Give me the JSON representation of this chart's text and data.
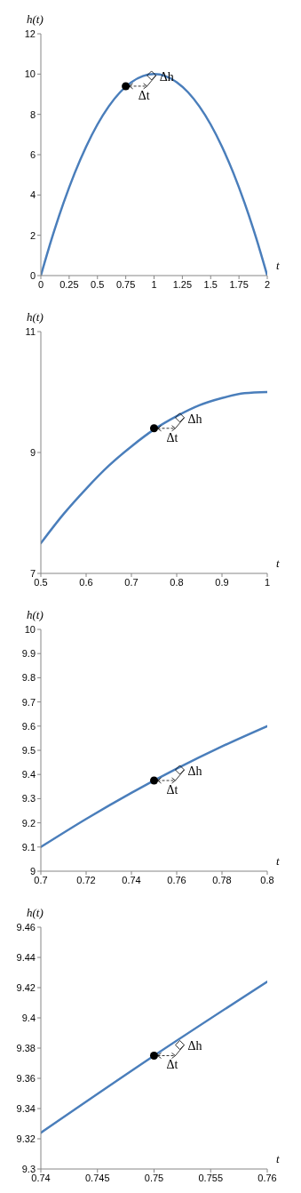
{
  "chart_data": [
    {
      "type": "line",
      "xlabel": "t",
      "ylabel": "h(t)",
      "xlim": [
        0,
        2
      ],
      "xticks": [
        0,
        0.25,
        0.5,
        0.75,
        1,
        1.25,
        1.5,
        1.75,
        2
      ],
      "ylim": [
        0,
        12
      ],
      "yticks": [
        0,
        2,
        4,
        6,
        8,
        10,
        12
      ],
      "grid": false,
      "series": [
        {
          "color": "#4a7ebb",
          "x": [
            0,
            0.1,
            0.2,
            0.3,
            0.4,
            0.5,
            0.6,
            0.7,
            0.8,
            0.9,
            1,
            1.1,
            1.2,
            1.3,
            1.4,
            1.5,
            1.6,
            1.7,
            1.8,
            1.9,
            2
          ],
          "values": [
            0,
            1.9,
            3.6,
            5.1,
            6.4,
            7.5,
            8.4,
            9.1,
            9.6,
            9.9,
            10,
            9.9,
            9.6,
            9.1,
            8.4,
            7.5,
            6.4,
            5.1,
            3.6,
            1.9,
            0
          ]
        },
        {
          "type": "scatter",
          "color": "#000000",
          "x": [
            0.75
          ],
          "values": [
            9.4
          ]
        }
      ],
      "annotations": [
        "Δt",
        "Δh"
      ]
    },
    {
      "type": "line",
      "xlabel": "t",
      "ylabel": "h(t)",
      "xlim": [
        0.5,
        1
      ],
      "xticks": [
        0.5,
        0.6,
        0.7,
        0.8,
        0.9,
        1
      ],
      "ylim": [
        7,
        11
      ],
      "yticks": [
        7,
        9,
        11
      ],
      "grid": false,
      "series": [
        {
          "color": "#4a7ebb",
          "x": [
            0.5,
            0.55,
            0.6,
            0.65,
            0.7,
            0.75,
            0.8,
            0.85,
            0.9,
            0.95,
            1
          ],
          "values": [
            7.5,
            7.98,
            8.4,
            8.78,
            9.1,
            9.38,
            9.6,
            9.78,
            9.9,
            9.98,
            10
          ]
        },
        {
          "type": "scatter",
          "color": "#000000",
          "x": [
            0.75
          ],
          "values": [
            9.4
          ]
        }
      ],
      "annotations": [
        "Δt",
        "Δh"
      ]
    },
    {
      "type": "line",
      "xlabel": "t",
      "ylabel": "h(t)",
      "xlim": [
        0.7,
        0.8
      ],
      "xticks": [
        0.7,
        0.72,
        0.74,
        0.76,
        0.78,
        0.8
      ],
      "ylim": [
        9,
        10
      ],
      "yticks": [
        9,
        9.1,
        9.2,
        9.3,
        9.4,
        9.5,
        9.6,
        9.7,
        9.8,
        9.9,
        10
      ],
      "grid": false,
      "series": [
        {
          "color": "#4a7ebb",
          "x": [
            0.7,
            0.72,
            0.74,
            0.76,
            0.78,
            0.8
          ],
          "values": [
            9.1,
            9.216,
            9.324,
            9.424,
            9.516,
            9.6
          ]
        },
        {
          "type": "scatter",
          "color": "#000000",
          "x": [
            0.75
          ],
          "values": [
            9.375
          ]
        }
      ],
      "annotations": [
        "Δt",
        "Δh"
      ]
    },
    {
      "type": "line",
      "xlabel": "t",
      "ylabel": "h(t)",
      "xlim": [
        0.74,
        0.76
      ],
      "xticks": [
        0.74,
        0.745,
        0.75,
        0.755,
        0.76
      ],
      "ylim": [
        9.3,
        9.46
      ],
      "yticks": [
        9.3,
        9.32,
        9.34,
        9.36,
        9.38,
        9.4,
        9.42,
        9.44,
        9.46
      ],
      "grid": false,
      "series": [
        {
          "color": "#4a7ebb",
          "x": [
            0.74,
            0.75,
            0.76
          ],
          "values": [
            9.324,
            9.375,
            9.424
          ]
        },
        {
          "type": "scatter",
          "color": "#000000",
          "x": [
            0.75
          ],
          "values": [
            9.375
          ]
        }
      ],
      "annotations": [
        "Δt",
        "Δh"
      ]
    }
  ]
}
